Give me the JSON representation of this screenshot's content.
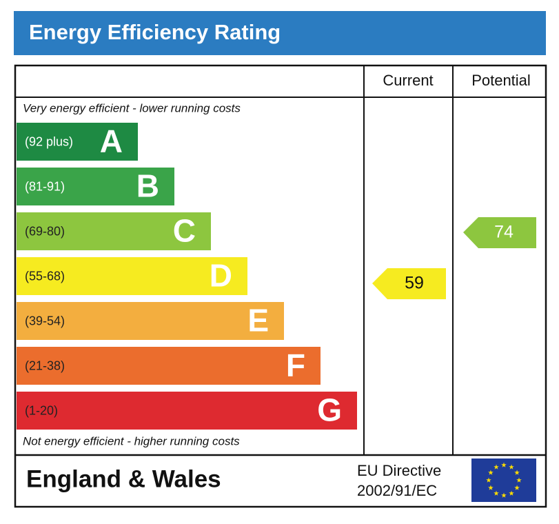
{
  "header": {
    "title": "Energy Efficiency Rating"
  },
  "columns": {
    "current": "Current",
    "potential": "Potential"
  },
  "notes": {
    "top": "Very energy efficient - lower running costs",
    "bottom": "Not energy efficient - higher running costs"
  },
  "bands": [
    {
      "range": "(92 plus)",
      "letter": "A",
      "color": "#1e8a43"
    },
    {
      "range": "(81-91)",
      "letter": "B",
      "color": "#3aa449"
    },
    {
      "range": "(69-80)",
      "letter": "C",
      "color": "#8dc63f"
    },
    {
      "range": "(55-68)",
      "letter": "D",
      "color": "#f6eb20"
    },
    {
      "range": "(39-54)",
      "letter": "E",
      "color": "#f3ae3f"
    },
    {
      "range": "(21-38)",
      "letter": "F",
      "color": "#eb6d2d"
    },
    {
      "range": "(1-20)",
      "letter": "G",
      "color": "#de2a30"
    }
  ],
  "ratings": {
    "current": 59,
    "potential": 74
  },
  "footer": {
    "region": "England & Wales",
    "directive_line1": "EU Directive",
    "directive_line2": "2002/91/EC"
  }
}
